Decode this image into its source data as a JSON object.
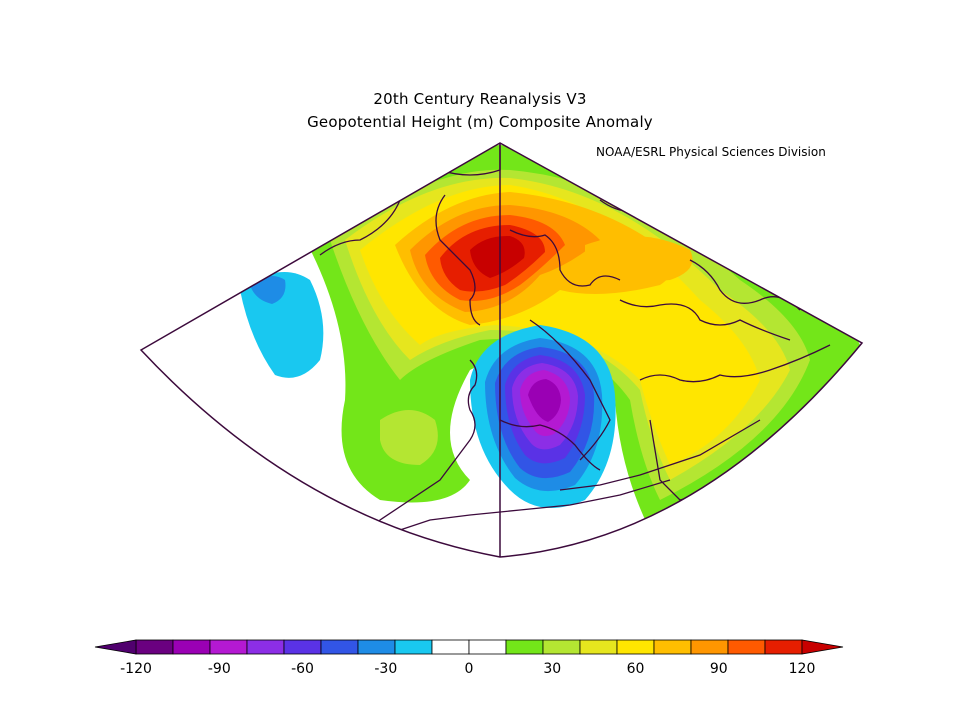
{
  "title_line1": "20th Century Reanalysis V3",
  "title_line2": "Geopotential Height (m) Composite Anomaly",
  "credit": "NOAA/ESRL Physical Sciences Division",
  "colorbar": {
    "colors": [
      "#6a0080",
      "#9a00b4",
      "#b419d2",
      "#8c2ee6",
      "#5a32e6",
      "#3255e6",
      "#1e8ce6",
      "#19c8f0",
      "#ffffff",
      "#ffffff",
      "#73e619",
      "#b4e632",
      "#e6e61e",
      "#ffe600",
      "#ffbe00",
      "#ff9600",
      "#ff5a00",
      "#e61e00"
    ],
    "labels": [
      "-120",
      "-90",
      "-60",
      "-30",
      "0",
      "30",
      "60",
      "90",
      "120"
    ],
    "min_color": "#50006e",
    "max_color": "#c80000"
  }
}
